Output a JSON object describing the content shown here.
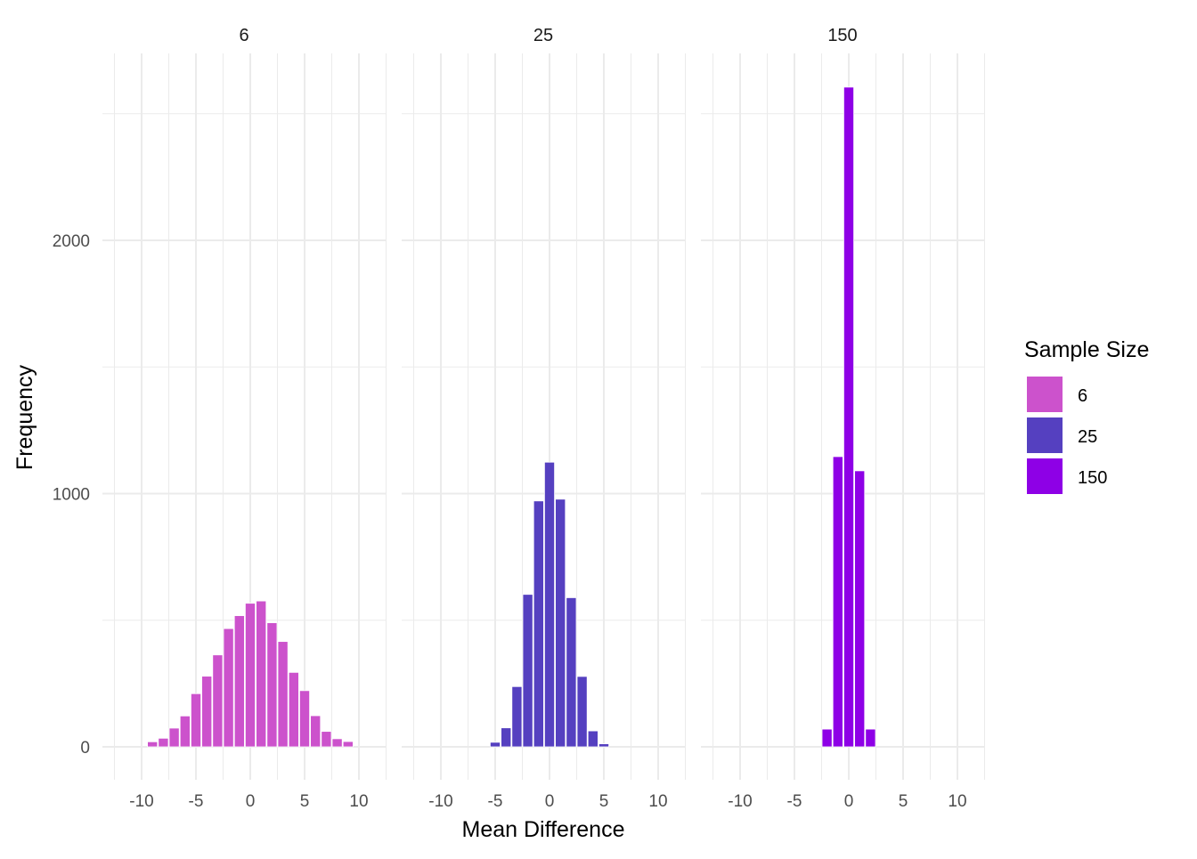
{
  "chart_data": {
    "type": "bar",
    "title": "",
    "xlabel": "Mean Difference",
    "ylabel": "Frequency",
    "xlim": [
      -12.5,
      12.5
    ],
    "ylim": [
      -100,
      2700
    ],
    "xticks": [
      -10,
      -5,
      0,
      5,
      10
    ],
    "yticks": [
      0,
      1000,
      2000
    ],
    "legend": {
      "title": "Sample Size",
      "placement": "right",
      "entries": [
        "6",
        "25",
        "150"
      ]
    },
    "panels": [
      {
        "label": "6",
        "color": "#CC52CC",
        "x": [
          -9,
          -8,
          -7,
          -6,
          -5,
          -4,
          -3,
          -2,
          -1,
          0,
          1,
          2,
          3,
          4,
          5,
          6,
          7,
          8,
          9
        ],
        "values": [
          20,
          34,
          74,
          122,
          210,
          279,
          363,
          467,
          518,
          567,
          576,
          490,
          416,
          294,
          222,
          123,
          61,
          32,
          21
        ]
      },
      {
        "label": "25",
        "color": "#5540C0",
        "x": [
          -5,
          -4,
          -3,
          -2,
          -1,
          0,
          1,
          2,
          3,
          4,
          5
        ],
        "values": [
          18,
          75,
          238,
          602,
          971,
          1124,
          978,
          589,
          278,
          63,
          12
        ]
      },
      {
        "label": "150",
        "color": "#8E00E6",
        "x": [
          -2,
          -1,
          0,
          1,
          2
        ],
        "values": [
          70,
          1146,
          2605,
          1090,
          70
        ]
      }
    ]
  }
}
